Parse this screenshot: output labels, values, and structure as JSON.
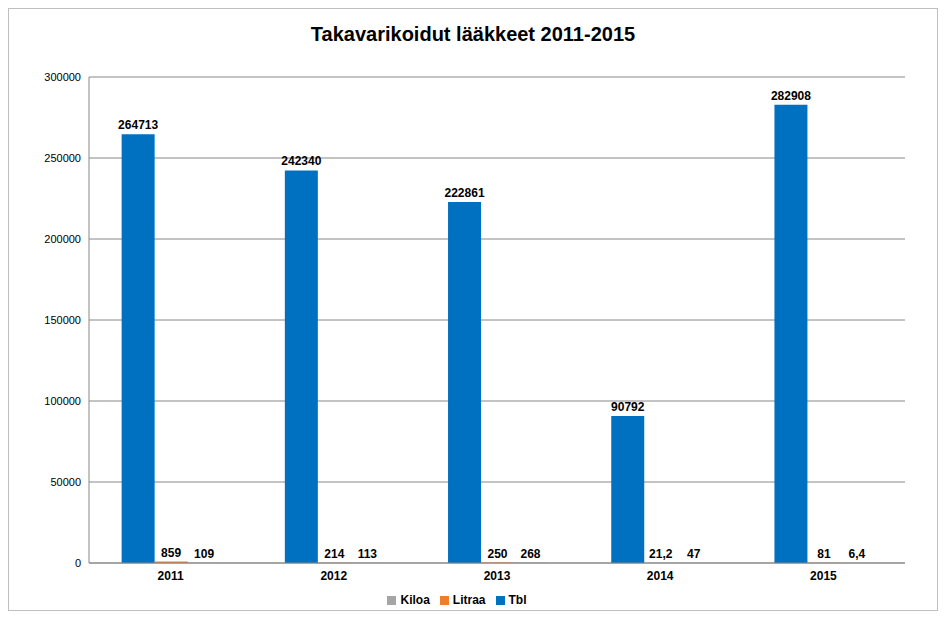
{
  "chart_data": {
    "type": "bar",
    "title": "Takavarikoidut lääkkeet 2011-2015",
    "categories": [
      "2011",
      "2012",
      "2013",
      "2014",
      "2015"
    ],
    "series": [
      {
        "name": "Tbl",
        "color": "#0070c0",
        "values": [
          264713,
          242340,
          222861,
          90792,
          282908
        ]
      },
      {
        "name": "Litraa",
        "color": "#ed7d31",
        "values": [
          859,
          214,
          250,
          21.2,
          81
        ],
        "value_labels": [
          "859",
          "214",
          "250",
          "21,2",
          "81"
        ]
      },
      {
        "name": "Kiloa",
        "color": "#a5a5a5",
        "values": [
          109,
          113,
          268,
          47,
          6.4
        ],
        "value_labels": [
          "109",
          "113",
          "268",
          "47",
          "6,4"
        ]
      }
    ],
    "ylim": [
      0,
      300000
    ],
    "yticks": [
      0,
      50000,
      100000,
      150000,
      200000,
      250000,
      300000
    ],
    "grid": true,
    "legend": "bottom",
    "data_labels": true
  }
}
